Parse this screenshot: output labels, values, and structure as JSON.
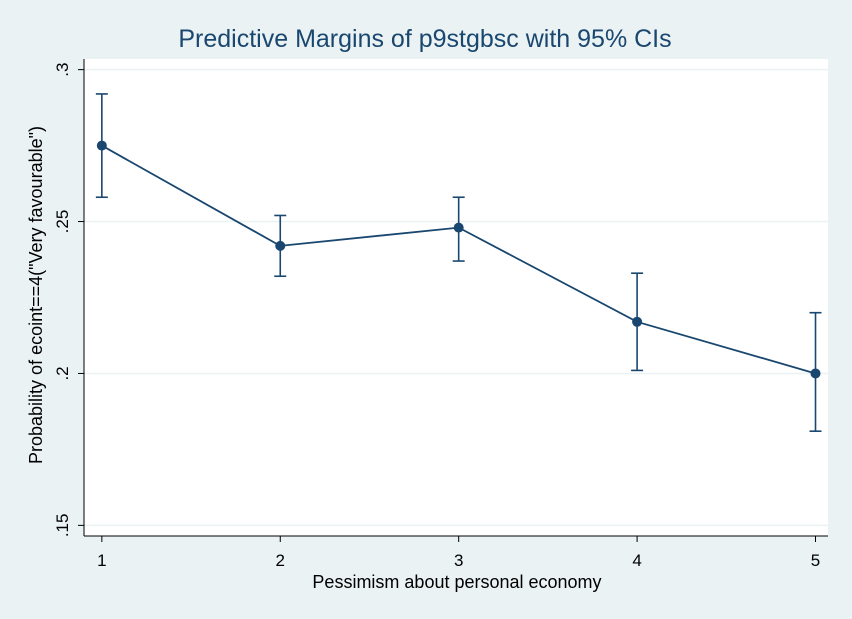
{
  "chart_data": {
    "type": "line",
    "title": "Predictive Margins of p9stgbsc with 95% CIs",
    "xlabel": "Pessimism about personal economy",
    "ylabel": "Probability of ecoint==4(\"Very favourable\")",
    "x": [
      1,
      2,
      3,
      4,
      5
    ],
    "x_tick_labels": [
      "1",
      "2",
      "3",
      "4",
      "5"
    ],
    "y_ticks": [
      0.15,
      0.2,
      0.25,
      0.3
    ],
    "y_tick_labels": [
      ".15",
      ".2",
      ".25",
      ".3"
    ],
    "ylim": [
      0.1465,
      0.3035
    ],
    "xlim": [
      0.9,
      5.07
    ],
    "grid": true,
    "series": [
      {
        "values": [
          0.275,
          0.242,
          0.248,
          0.217,
          0.2
        ],
        "ci_lower": [
          0.258,
          0.232,
          0.237,
          0.201,
          0.181
        ],
        "ci_upper": [
          0.292,
          0.252,
          0.258,
          0.233,
          0.22
        ]
      }
    ],
    "colors": {
      "series": "#1a476f",
      "background": "#eaf2f3",
      "plot_background": "#ffffff",
      "grid": "#eaf2f3"
    }
  }
}
